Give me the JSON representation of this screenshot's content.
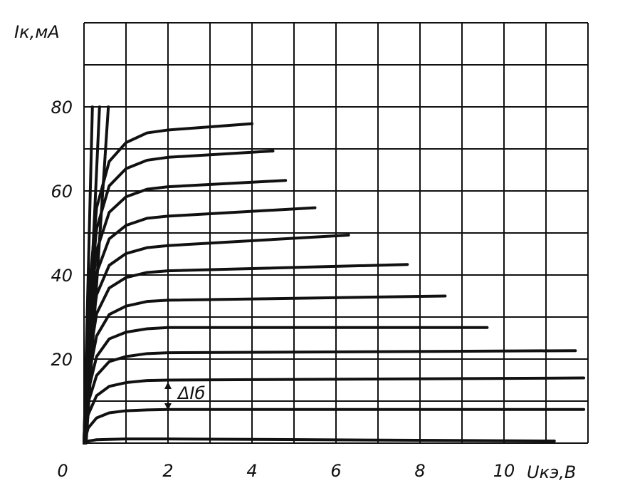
{
  "chart_data": {
    "type": "line",
    "y_label": "Iк,мА",
    "x_label": "Uкэ,В",
    "annotation": "ΔIб",
    "xlim": [
      0,
      12
    ],
    "ylim": [
      0,
      100
    ],
    "xticks": [
      0,
      2,
      4,
      6,
      8,
      10
    ],
    "yticks": [
      20,
      40,
      60,
      80
    ],
    "xgrid": [
      0,
      1,
      2,
      3,
      4,
      5,
      6,
      7,
      8,
      9,
      10,
      11,
      12
    ],
    "ygrid": [
      0,
      10,
      20,
      30,
      40,
      50,
      60,
      70,
      80,
      90,
      100
    ],
    "color": "#111111",
    "series": [
      {
        "x": [
          0,
          0.1,
          0.3,
          0.6,
          1,
          1.5,
          2,
          4
        ],
        "values": [
          0,
          33.5,
          56,
          67,
          71.5,
          73.8,
          74.5,
          76
        ]
      },
      {
        "x": [
          0,
          0.1,
          0.3,
          0.6,
          1,
          1.5,
          2,
          4.5
        ],
        "values": [
          0,
          30.6,
          51,
          61.2,
          65.3,
          67.3,
          68,
          69.5
        ]
      },
      {
        "x": [
          0,
          0.1,
          0.3,
          0.6,
          1,
          1.5,
          2,
          4.8
        ],
        "values": [
          0,
          27.5,
          45.8,
          54.9,
          58.6,
          60.4,
          61,
          62.5
        ]
      },
      {
        "x": [
          0,
          0.1,
          0.3,
          0.6,
          1,
          1.5,
          2,
          5.5
        ],
        "values": [
          0,
          24.3,
          40.5,
          48.6,
          51.8,
          53.5,
          54,
          56
        ]
      },
      {
        "x": [
          0,
          0.1,
          0.3,
          0.6,
          1,
          1.5,
          2,
          6.3
        ],
        "values": [
          0,
          21.2,
          35.3,
          42.3,
          45.1,
          46.5,
          47,
          49.5
        ]
      },
      {
        "x": [
          0,
          0.1,
          0.3,
          0.6,
          1,
          1.5,
          2,
          7.7
        ],
        "values": [
          0,
          18.5,
          30.8,
          36.9,
          39.4,
          40.6,
          41,
          42.5
        ]
      },
      {
        "x": [
          0,
          0.1,
          0.3,
          0.6,
          1,
          1.5,
          2,
          8.6
        ],
        "values": [
          0,
          15.3,
          25.5,
          30.6,
          32.6,
          33.7,
          34,
          35
        ]
      },
      {
        "x": [
          0,
          0.1,
          0.3,
          0.6,
          1,
          1.5,
          2,
          9.6
        ],
        "values": [
          0,
          12.4,
          20.6,
          24.8,
          26.4,
          27.2,
          27.5,
          27.5
        ]
      },
      {
        "x": [
          0,
          0.1,
          0.3,
          0.6,
          1,
          1.5,
          2,
          11.7
        ],
        "values": [
          0,
          9.7,
          16.1,
          19.4,
          20.6,
          21.3,
          21.5,
          22
        ]
      },
      {
        "x": [
          0,
          0.1,
          0.3,
          0.6,
          1,
          1.5,
          2,
          11.9
        ],
        "values": [
          0,
          6.8,
          11.3,
          13.5,
          14.4,
          14.9,
          15,
          15.5
        ]
      },
      {
        "x": [
          0,
          0.1,
          0.3,
          0.6,
          1,
          1.5,
          2,
          11.9
        ],
        "values": [
          0,
          3.6,
          6,
          7.2,
          7.7,
          7.9,
          8,
          8
        ]
      },
      {
        "x": [
          0,
          0.1,
          0.3,
          0.6,
          1,
          1.5,
          2,
          11.2
        ],
        "values": [
          0,
          0.5,
          0.8,
          0.9,
          1,
          1,
          1,
          0.5
        ]
      },
      {
        "x": [
          0,
          0.2
        ],
        "values": [
          0,
          80
        ]
      },
      {
        "x": [
          0,
          0.37
        ],
        "values": [
          0,
          80
        ]
      },
      {
        "x": [
          0.05,
          0.58
        ],
        "values": [
          0,
          80
        ]
      }
    ]
  }
}
